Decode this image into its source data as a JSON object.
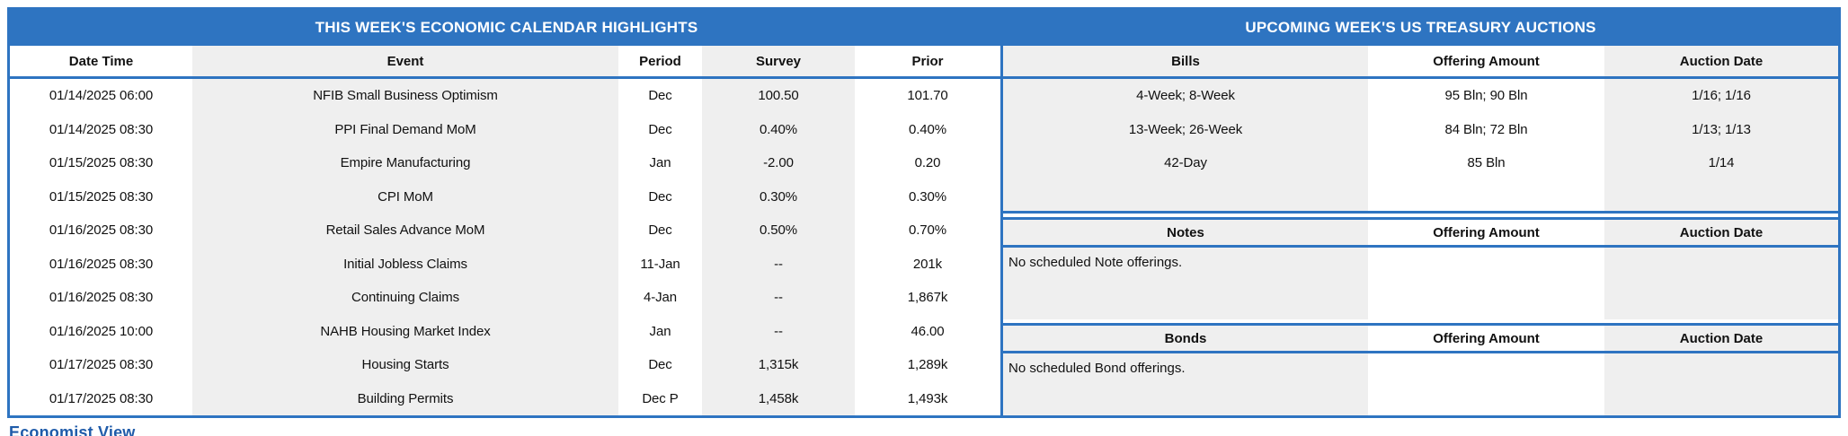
{
  "colors": {
    "accent_blue": "#2e74c1",
    "stripe_gray": "#efefef",
    "footer_blue": "#1f5ba9"
  },
  "economic_calendar": {
    "title": "THIS WEEK'S ECONOMIC CALENDAR HIGHLIGHTS",
    "columns": [
      "Date Time",
      "Event",
      "Period",
      "Survey",
      "Prior"
    ],
    "rows": [
      [
        "01/14/2025 06:00",
        "NFIB Small Business Optimism",
        "Dec",
        "100.50",
        "101.70"
      ],
      [
        "01/14/2025 08:30",
        "PPI Final Demand MoM",
        "Dec",
        "0.40%",
        "0.40%"
      ],
      [
        "01/15/2025 08:30",
        "Empire Manufacturing",
        "Jan",
        "-2.00",
        "0.20"
      ],
      [
        "01/15/2025 08:30",
        "CPI MoM",
        "Dec",
        "0.30%",
        "0.30%"
      ],
      [
        "01/16/2025 08:30",
        "Retail Sales Advance MoM",
        "Dec",
        "0.50%",
        "0.70%"
      ],
      [
        "01/16/2025 08:30",
        "Initial Jobless Claims",
        "11-Jan",
        "--",
        "201k"
      ],
      [
        "01/16/2025 08:30",
        "Continuing Claims",
        "4-Jan",
        "--",
        "1,867k"
      ],
      [
        "01/16/2025 10:00",
        "NAHB Housing Market Index",
        "Jan",
        "--",
        "46.00"
      ],
      [
        "01/17/2025 08:30",
        "Housing Starts",
        "Dec",
        "1,315k",
        "1,289k"
      ],
      [
        "01/17/2025 08:30",
        "Building Permits",
        "Dec P",
        "1,458k",
        "1,493k"
      ]
    ]
  },
  "treasury_auctions": {
    "title": "UPCOMING WEEK'S US TREASURY AUCTIONS",
    "bills": {
      "columns": [
        "Bills",
        "Offering Amount",
        "Auction Date"
      ],
      "rows": [
        [
          "4-Week; 8-Week",
          "95 Bln; 90 Bln",
          "1/16; 1/16"
        ],
        [
          "13-Week; 26-Week",
          "84 Bln; 72 Bln",
          "1/13; 1/13"
        ],
        [
          "42-Day",
          "85 Bln",
          "1/14"
        ]
      ]
    },
    "notes": {
      "columns": [
        "Notes",
        "Offering Amount",
        "Auction Date"
      ],
      "empty_message": "No scheduled Note offerings."
    },
    "bonds": {
      "columns": [
        "Bonds",
        "Offering Amount",
        "Auction Date"
      ],
      "empty_message": "No scheduled Bond offerings."
    }
  },
  "footer": {
    "partial_text": "Economist View"
  }
}
